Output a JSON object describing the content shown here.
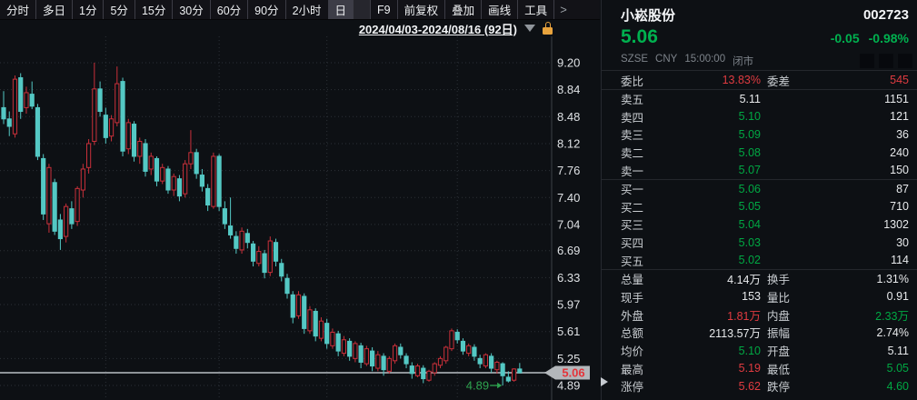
{
  "toolbar": {
    "items": [
      "分时",
      "多日",
      "1分",
      "5分",
      "15分",
      "30分",
      "60分",
      "90分",
      "2小时",
      "日",
      "F9",
      "前复权",
      "叠加",
      "画线",
      "工具",
      ">"
    ],
    "active_item": "日"
  },
  "chart_header": {
    "date_range": "2024/04/03-2024/08/16 (92日)"
  },
  "quote": {
    "name": "小崧股份",
    "code": "002723",
    "last_price": "5.06",
    "change": "-0.05",
    "change_pct": "-0.98%",
    "exchange": "SZSE",
    "currency": "CNY",
    "time": "15:00:00",
    "market_status": "闭市",
    "order_ratio": {
      "label": "委比",
      "value": "13.83%",
      "value_color": "#e03b40",
      "label2": "委差",
      "value2": "545",
      "value2_color": "#e03b40"
    },
    "asks": [
      {
        "label": "卖五",
        "price": "5.11",
        "volume": "1151",
        "price_color": "#e8eaec"
      },
      {
        "label": "卖四",
        "price": "5.10",
        "volume": "121",
        "price_color": "#00a843"
      },
      {
        "label": "卖三",
        "price": "5.09",
        "volume": "36",
        "price_color": "#00a843"
      },
      {
        "label": "卖二",
        "price": "5.08",
        "volume": "240",
        "price_color": "#00a843"
      },
      {
        "label": "卖一",
        "price": "5.07",
        "volume": "150",
        "price_color": "#00a843"
      }
    ],
    "bids": [
      {
        "label": "买一",
        "price": "5.06",
        "volume": "87",
        "price_color": "#00a843"
      },
      {
        "label": "买二",
        "price": "5.05",
        "volume": "710",
        "price_color": "#00a843"
      },
      {
        "label": "买三",
        "price": "5.04",
        "volume": "1302",
        "price_color": "#00a843"
      },
      {
        "label": "买四",
        "price": "5.03",
        "volume": "30",
        "price_color": "#00a843"
      },
      {
        "label": "买五",
        "price": "5.02",
        "volume": "114",
        "price_color": "#00a843"
      }
    ],
    "stats": [
      {
        "label": "总量",
        "value": "4.14万",
        "color": "#e8eaec",
        "label2": "换手",
        "value2": "1.31%",
        "color2": "#e8eaec"
      },
      {
        "label": "现手",
        "value": "153",
        "color": "#e8eaec",
        "label2": "量比",
        "value2": "0.91",
        "color2": "#e8eaec"
      },
      {
        "label": "外盘",
        "value": "1.81万",
        "color": "#e03b40",
        "label2": "内盘",
        "value2": "2.33万",
        "color2": "#00a843"
      },
      {
        "label": "总额",
        "value": "2113.57万",
        "color": "#e8eaec",
        "label2": "振幅",
        "value2": "2.74%",
        "color2": "#e8eaec"
      },
      {
        "label": "均价",
        "value": "5.10",
        "color": "#00a843",
        "label2": "开盘",
        "value2": "5.11",
        "color2": "#e8eaec"
      },
      {
        "label": "最高",
        "value": "5.19",
        "color": "#e03b40",
        "label2": "最低",
        "value2": "5.05",
        "color2": "#00a843"
      },
      {
        "label": "涨停",
        "value": "5.62",
        "color": "#e03b40",
        "label2": "跌停",
        "value2": "4.60",
        "color2": "#00a843"
      }
    ]
  },
  "chart_data": {
    "type": "candlestick",
    "title": "小崧股份 002723 日K",
    "date_range_start": "2024/04/03",
    "date_range_end": "2024/08/16",
    "days": 92,
    "y_ticks": [
      "9.20",
      "8.84",
      "8.48",
      "8.12",
      "7.76",
      "7.40",
      "7.04",
      "6.69",
      "6.33",
      "5.97",
      "5.61",
      "5.25",
      "4.89"
    ],
    "price_max": 9.2,
    "price_min": 4.89,
    "last_price": 5.06,
    "last_price_label": "5.06",
    "low_annotation": {
      "text": "4.89",
      "day": 89
    },
    "month_gridline_days": [
      19,
      39,
      58,
      81
    ],
    "up_color": "#c9303a",
    "down_color": "#54c8c4",
    "line_color": "#8e9398",
    "tag_bg": "#b3b7bb",
    "ohlc": [
      [
        8.6,
        8.82,
        8.38,
        8.45
      ],
      [
        8.45,
        8.55,
        8.22,
        8.35
      ],
      [
        8.25,
        9.03,
        8.2,
        8.98
      ],
      [
        9.0,
        9.06,
        8.45,
        8.55
      ],
      [
        8.6,
        8.88,
        8.52,
        8.8
      ],
      [
        8.78,
        8.95,
        8.58,
        8.62
      ],
      [
        8.6,
        8.65,
        7.9,
        7.95
      ],
      [
        7.92,
        7.98,
        7.1,
        7.18
      ],
      [
        7.05,
        7.85,
        6.93,
        7.8
      ],
      [
        7.6,
        7.65,
        6.9,
        6.95
      ],
      [
        7.1,
        7.18,
        6.7,
        6.85
      ],
      [
        6.88,
        7.32,
        6.8,
        7.28
      ],
      [
        7.25,
        7.35,
        6.98,
        7.05
      ],
      [
        7.08,
        7.55,
        7.02,
        7.52
      ],
      [
        7.5,
        7.85,
        7.4,
        7.78
      ],
      [
        7.8,
        8.18,
        7.72,
        8.12
      ],
      [
        8.15,
        9.2,
        8.1,
        8.85
      ],
      [
        8.85,
        8.95,
        8.48,
        8.55
      ],
      [
        8.5,
        8.6,
        8.12,
        8.2
      ],
      [
        8.22,
        8.5,
        8.15,
        8.45
      ],
      [
        8.4,
        9.15,
        8.35,
        8.92
      ],
      [
        8.95,
        9.0,
        7.95,
        8.02
      ],
      [
        8.05,
        8.45,
        7.98,
        8.4
      ],
      [
        8.38,
        8.42,
        7.88,
        7.95
      ],
      [
        7.95,
        8.2,
        7.85,
        8.15
      ],
      [
        8.12,
        8.18,
        7.68,
        7.75
      ],
      [
        7.78,
        8.0,
        7.7,
        7.95
      ],
      [
        7.92,
        7.95,
        7.55,
        7.62
      ],
      [
        7.62,
        7.85,
        7.58,
        7.8
      ],
      [
        7.78,
        7.82,
        7.45,
        7.5
      ],
      [
        7.5,
        7.72,
        7.42,
        7.68
      ],
      [
        7.65,
        7.7,
        7.35,
        7.42
      ],
      [
        7.45,
        7.9,
        7.4,
        7.85
      ],
      [
        7.85,
        8.3,
        7.78,
        8.0
      ],
      [
        8.0,
        8.05,
        7.65,
        7.72
      ],
      [
        7.7,
        7.78,
        7.48,
        7.55
      ],
      [
        7.52,
        7.58,
        7.22,
        7.3
      ],
      [
        7.28,
        8.0,
        7.25,
        7.95
      ],
      [
        7.95,
        7.98,
        7.22,
        7.28
      ],
      [
        7.25,
        7.35,
        6.98,
        7.05
      ],
      [
        7.02,
        7.4,
        6.85,
        6.9
      ],
      [
        6.88,
        6.95,
        6.65,
        6.72
      ],
      [
        6.7,
        7.0,
        6.65,
        6.95
      ],
      [
        6.92,
        6.98,
        6.72,
        6.8
      ],
      [
        6.78,
        6.82,
        6.48,
        6.55
      ],
      [
        6.52,
        6.75,
        6.48,
        6.68
      ],
      [
        6.65,
        6.7,
        6.32,
        6.4
      ],
      [
        6.4,
        6.88,
        6.35,
        6.82
      ],
      [
        6.8,
        6.85,
        6.48,
        6.55
      ],
      [
        6.52,
        6.58,
        6.28,
        6.35
      ],
      [
        6.32,
        6.38,
        6.05,
        6.12
      ],
      [
        6.1,
        6.15,
        5.72,
        5.8
      ],
      [
        5.82,
        6.15,
        5.78,
        6.1
      ],
      [
        6.08,
        6.12,
        5.58,
        5.65
      ],
      [
        5.62,
        5.95,
        5.58,
        5.9
      ],
      [
        5.88,
        5.92,
        5.48,
        5.55
      ],
      [
        5.52,
        5.8,
        5.48,
        5.75
      ],
      [
        5.72,
        5.78,
        5.38,
        5.45
      ],
      [
        5.42,
        5.65,
        5.38,
        5.6
      ],
      [
        5.58,
        5.62,
        5.28,
        5.35
      ],
      [
        5.32,
        5.55,
        5.28,
        5.5
      ],
      [
        5.48,
        5.52,
        5.22,
        5.28
      ],
      [
        5.25,
        5.48,
        5.2,
        5.45
      ],
      [
        5.42,
        5.46,
        5.12,
        5.2
      ],
      [
        5.18,
        5.42,
        5.15,
        5.38
      ],
      [
        5.35,
        5.4,
        5.08,
        5.15
      ],
      [
        5.12,
        5.35,
        5.08,
        5.3
      ],
      [
        5.28,
        5.32,
        5.02,
        5.1
      ],
      [
        5.08,
        5.28,
        5.05,
        5.25
      ],
      [
        5.22,
        5.45,
        5.18,
        5.42
      ],
      [
        5.4,
        5.45,
        5.25,
        5.3
      ],
      [
        5.28,
        5.32,
        5.12,
        5.18
      ],
      [
        5.15,
        5.2,
        4.98,
        5.05
      ],
      [
        5.02,
        5.18,
        5.0,
        5.15
      ],
      [
        5.12,
        5.16,
        4.92,
        4.98
      ],
      [
        4.96,
        5.1,
        4.94,
        5.08
      ],
      [
        5.06,
        5.2,
        5.02,
        5.18
      ],
      [
        5.16,
        5.28,
        5.12,
        5.25
      ],
      [
        5.22,
        5.42,
        5.18,
        5.4
      ],
      [
        5.38,
        5.65,
        5.35,
        5.62
      ],
      [
        5.6,
        5.64,
        5.45,
        5.5
      ],
      [
        5.48,
        5.52,
        5.3,
        5.35
      ],
      [
        5.32,
        5.45,
        5.28,
        5.42
      ],
      [
        5.4,
        5.44,
        5.22,
        5.28
      ],
      [
        5.25,
        5.3,
        5.12,
        5.18
      ],
      [
        5.15,
        5.32,
        5.12,
        5.3
      ],
      [
        5.28,
        5.32,
        5.06,
        5.12
      ],
      [
        5.1,
        5.22,
        5.05,
        5.2
      ],
      [
        5.18,
        5.2,
        4.89,
        5.02
      ],
      [
        5.0,
        5.08,
        4.93,
        4.95
      ],
      [
        4.96,
        5.12,
        4.94,
        5.11
      ],
      [
        5.11,
        5.19,
        5.05,
        5.06
      ]
    ]
  }
}
